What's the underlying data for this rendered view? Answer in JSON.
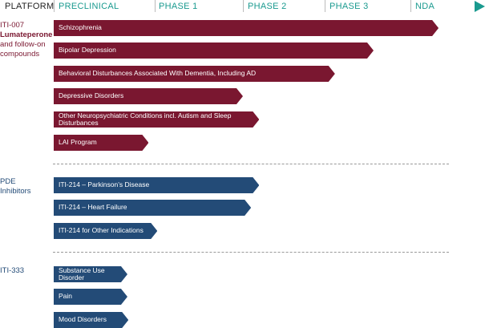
{
  "header": {
    "platform": "PLATFORM",
    "phases": [
      "PRECLINICAL",
      "PHASE 1",
      "PHASE 2",
      "PHASE 3",
      "NDA"
    ]
  },
  "colors": {
    "lumateperone": "#7a1730",
    "pde": "#234b77",
    "phase_header": "#1a9a8f"
  },
  "groups": [
    {
      "label_line1": "ITI-007",
      "label_bold": "Lumateperone",
      "label_line3": "and follow-on",
      "label_line4": "compounds",
      "programs": [
        {
          "name": "Schizophrenia",
          "progress": 4.45
        },
        {
          "name": "Bipolar Depression",
          "progress": 3.57
        },
        {
          "name": "Behavioral Disturbances Associated With Dementia, Including AD",
          "progress": 3.12
        },
        {
          "name": "Depressive Disorders",
          "progress": 2.0
        },
        {
          "name": "Other Neuropsychiatric Conditions incl. Autism and Sleep Disturbances",
          "progress": 2.2
        },
        {
          "name": "LAI Program",
          "progress": 0.94
        }
      ]
    },
    {
      "label_line1": "PDE",
      "label_line2": "Inhibitors",
      "programs": [
        {
          "name": "ITI-214 – Parkinson’s Disease",
          "progress": 2.2
        },
        {
          "name": "ITI-214 – Heart Failure",
          "progress": 2.1
        },
        {
          "name": "ITI-214 for Other Indications",
          "progress": 1.03
        }
      ]
    },
    {
      "label_line1": "ITI-333",
      "programs": [
        {
          "name": "Substance Use Disorder",
          "progress": 0.73
        },
        {
          "name": "Pain",
          "progress": 0.73
        },
        {
          "name": "Mood Disorders",
          "progress": 0.74
        }
      ]
    }
  ]
}
